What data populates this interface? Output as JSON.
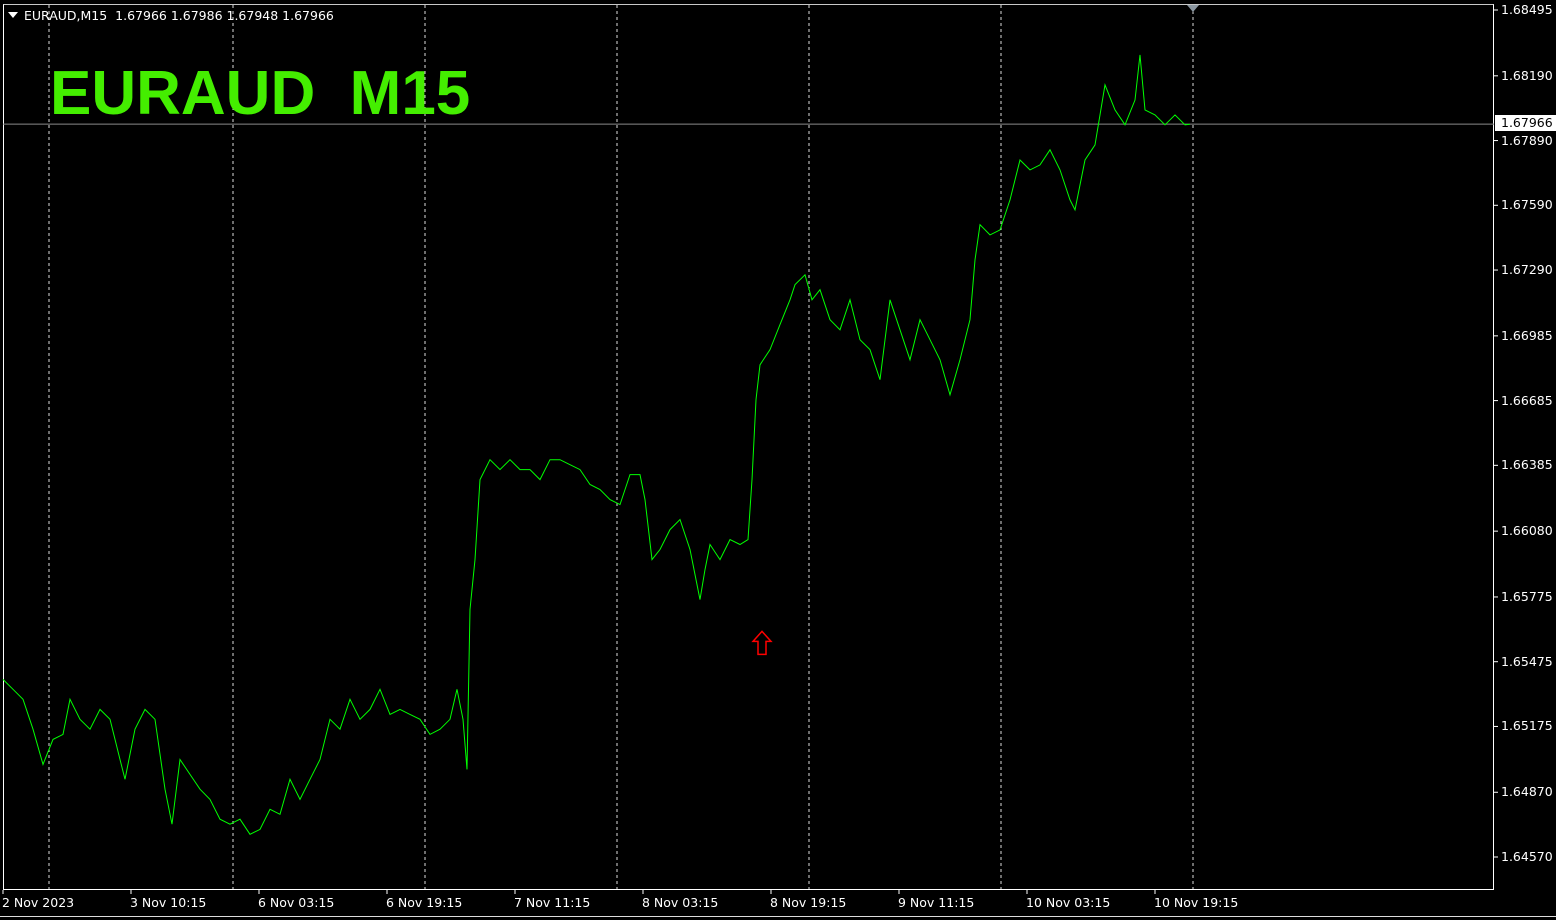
{
  "header": {
    "symbol": "EURAUD,M15",
    "ohlc": "1.67966 1.67986 1.67948 1.67966"
  },
  "watermark": {
    "text": "EURAUD  M15",
    "color": "#44ee00"
  },
  "chart_data": {
    "type": "line",
    "title": "",
    "line_color": "#00ff00",
    "background": "#000000",
    "grid": "vertical dashed",
    "ylim": [
      1.6447,
      1.6854
    ],
    "y_ticks": [
      "1.68495",
      "1.68190",
      "1.67890",
      "1.67590",
      "1.67290",
      "1.66985",
      "1.66685",
      "1.66385",
      "1.66080",
      "1.65775",
      "1.65475",
      "1.65175",
      "1.64870",
      "1.64570"
    ],
    "x_ticks": [
      "2 Nov 2023",
      "3 Nov 10:15",
      "6 Nov 03:15",
      "6 Nov 19:15",
      "7 Nov 11:15",
      "8 Nov 03:15",
      "8 Nov 19:15",
      "9 Nov 11:15",
      "10 Nov 03:15",
      "10 Nov 19:15"
    ],
    "current_price": "1.67966",
    "marker": {
      "type": "up-arrow",
      "color": "#ff0000",
      "near": "8 Nov 12:00",
      "price": 1.6556
    },
    "values": [
      1.65393,
      1.65347,
      1.65301,
      1.65162,
      1.64999,
      1.65115,
      1.65138,
      1.65301,
      1.65208,
      1.65162,
      1.65254,
      1.65208,
      1.65022,
      1.6493,
      1.65162,
      1.65254,
      1.65208,
      1.64884,
      1.64722,
      1.65022,
      1.64953,
      1.64884,
      1.64837,
      1.64745,
      1.64722,
      1.64745,
      1.64675,
      1.64698,
      1.64791,
      1.64768,
      1.6493,
      1.64837,
      1.6493,
      1.65022,
      1.65208,
      1.65162,
      1.65301,
      1.65208,
      1.65254,
      1.65347,
      1.65231,
      1.65254,
      1.65231,
      1.65208,
      1.65138,
      1.65162,
      1.65208,
      1.65347,
      1.65208,
      1.64976,
      1.65717,
      1.65948,
      1.66319,
      1.66411,
      1.66365,
      1.66411,
      1.66365,
      1.66365,
      1.66319,
      1.66411,
      1.66411,
      1.66388,
      1.66365,
      1.66296,
      1.66273,
      1.66226,
      1.66203,
      1.66342,
      1.66342,
      1.66226,
      1.65948,
      1.65995,
      1.66087,
      1.66134,
      1.65995,
      1.65763,
      1.65902,
      1.66018,
      1.65948,
      1.66041,
      1.66018,
      1.66041,
      1.66319,
      1.66689,
      1.66851,
      1.66921,
      1.67037,
      1.67152,
      1.67222,
      1.67268,
      1.67152,
      1.67199,
      1.6706,
      1.67013,
      1.67152,
      1.66967,
      1.66921,
      1.66782,
      1.67152,
      1.67013,
      1.66874,
      1.6706,
      1.66967,
      1.66874,
      1.66712,
      1.66874,
      1.6706,
      1.67337,
      1.675,
      1.67453,
      1.67476,
      1.67615,
      1.678,
      1.67754,
      1.67777,
      1.67847,
      1.67754,
      1.67615,
      1.67569,
      1.678,
      1.6787,
      1.68148,
      1.68032,
      1.67963,
      1.68078,
      1.68287,
      1.68032,
      1.68009,
      1.67963,
      1.68009,
      1.67963,
      1.67966
    ]
  }
}
